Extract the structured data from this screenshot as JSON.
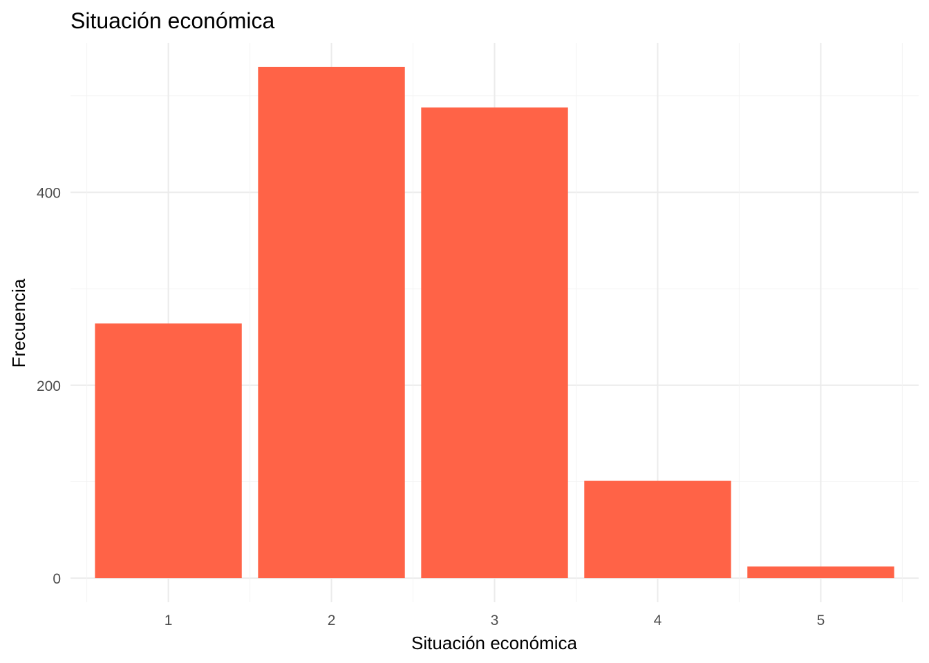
{
  "chart_data": {
    "type": "bar",
    "title": "Situación económica",
    "xlabel": "Situación económica",
    "ylabel": "Frecuencia",
    "categories": [
      "1",
      "2",
      "3",
      "4",
      "5"
    ],
    "values": [
      264,
      530,
      488,
      101,
      12
    ],
    "yticks": [
      0,
      200,
      400
    ],
    "ytick_labels": [
      "0",
      "200",
      "400"
    ],
    "ylim": [
      -25,
      555
    ],
    "grid": true,
    "bar_color": "#FF6347",
    "legend": "none"
  }
}
